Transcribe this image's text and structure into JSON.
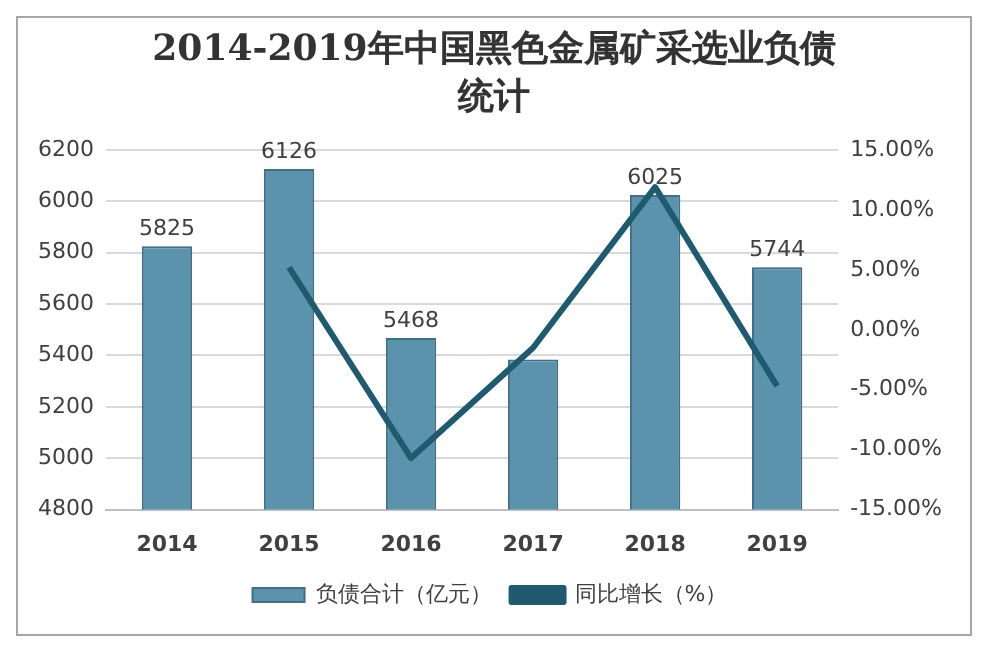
{
  "chart_data": {
    "type": "bar",
    "title": "2014-2019年中国黑色金属矿采选业负债统计",
    "categories": [
      "2014",
      "2015",
      "2016",
      "2017",
      "2018",
      "2019"
    ],
    "series": [
      {
        "name": "负债合计（亿元）",
        "color": "#5b93ad",
        "values": [
          5825,
          6126,
          5468,
          5384,
          6025,
          5744
        ],
        "value_labels": [
          "5825",
          "6126",
          "5468",
          null,
          "6025",
          "5744"
        ]
      },
      {
        "name": "同比增长（%）",
        "type": "line",
        "axis": "y2",
        "color": "#1f5a6e",
        "values": [
          null,
          5.2,
          -10.7,
          -1.5,
          11.9,
          -4.7
        ]
      }
    ],
    "ylim": [
      4800,
      6200
    ],
    "yticks": [
      4800,
      5000,
      5200,
      5400,
      5600,
      5800,
      6000,
      6200
    ],
    "y2lim": [
      -15,
      15
    ],
    "y2ticks": [
      {
        "value": -15,
        "label": "-15.00%"
      },
      {
        "value": -10,
        "label": "-10.00%"
      },
      {
        "value": -5,
        "label": "-5.00%"
      },
      {
        "value": 0,
        "label": "0.00%"
      },
      {
        "value": 5,
        "label": "5.00%"
      },
      {
        "value": 10,
        "label": "10.00%"
      },
      {
        "value": 15,
        "label": "15.00%"
      }
    ],
    "grid": "y",
    "legend": "bottom",
    "marker": "none"
  }
}
